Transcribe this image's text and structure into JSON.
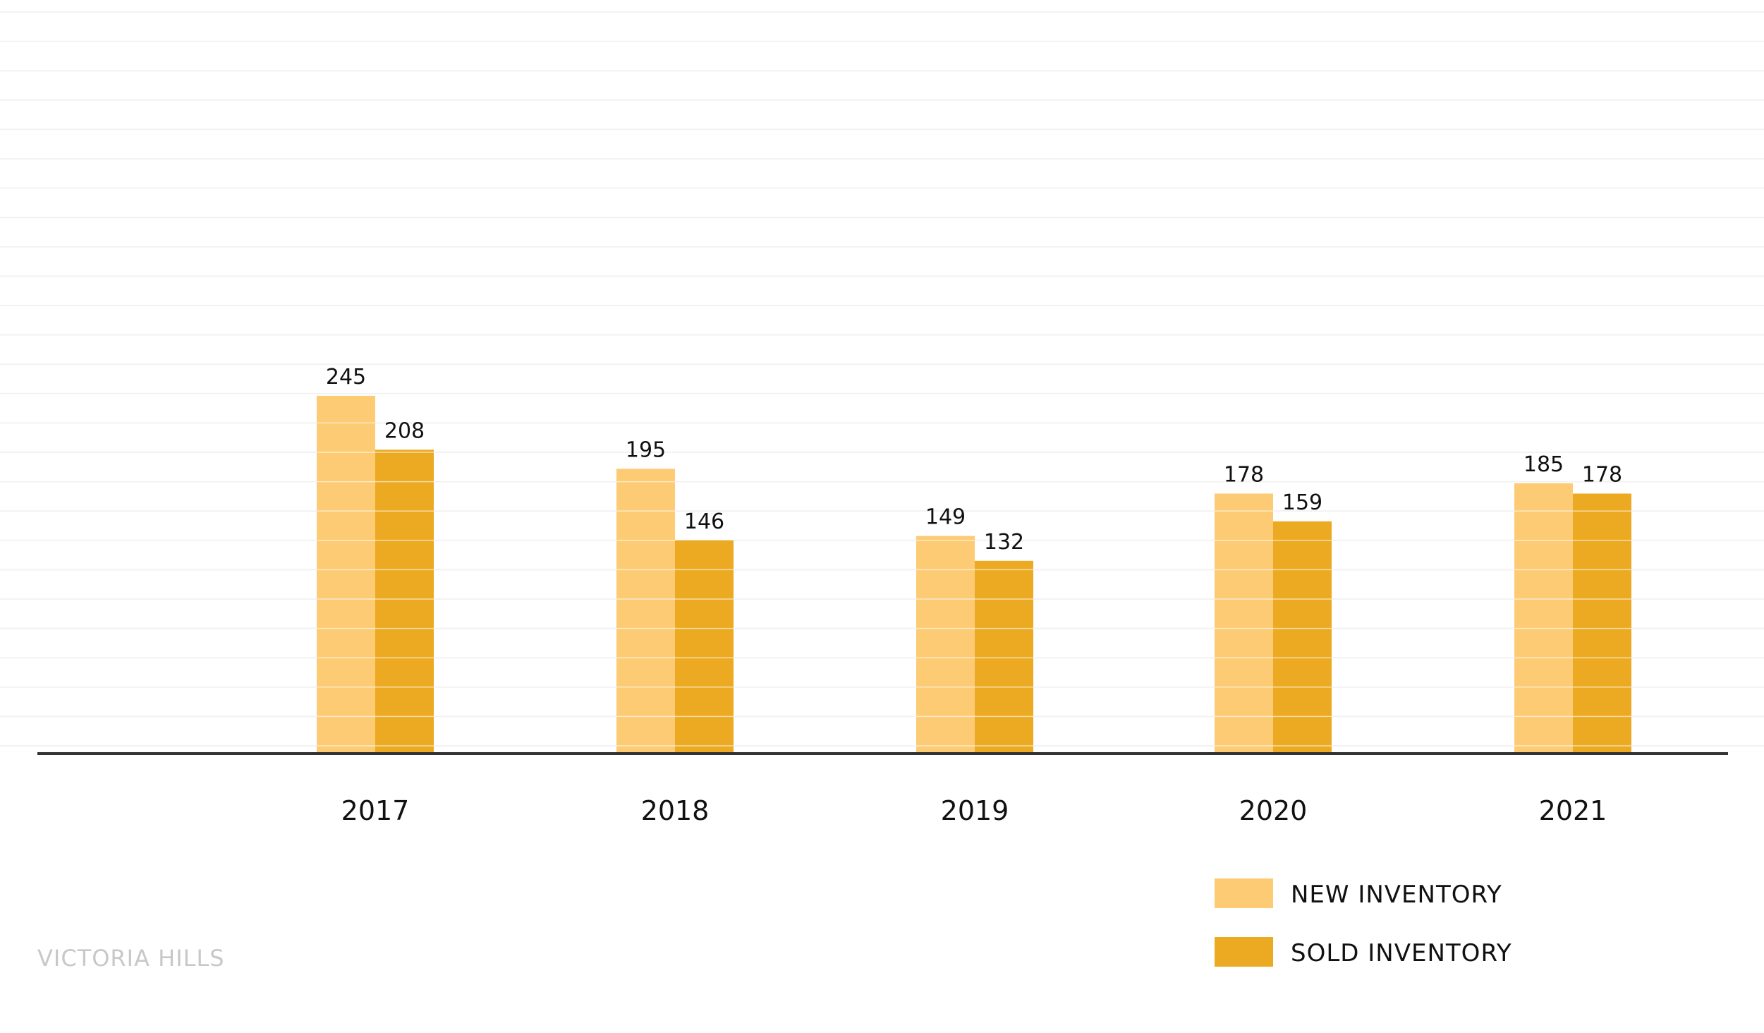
{
  "chart_data": {
    "type": "bar",
    "title": "",
    "xlabel": "",
    "ylabel": "",
    "categories": [
      "2017",
      "2018",
      "2019",
      "2020",
      "2021"
    ],
    "series": [
      {
        "name": "NEW INVENTORY",
        "values": [
          245,
          195,
          149,
          178,
          185
        ],
        "color": "#FCCB74"
      },
      {
        "name": "SOLD INVENTORY",
        "values": [
          208,
          146,
          132,
          159,
          178
        ],
        "color": "#EBAA22"
      }
    ],
    "ylim": [
      0,
      500
    ],
    "grid": true,
    "legend_position": "bottom-right",
    "colors": {
      "gridline": "#f2f2f2",
      "axis": "#333333",
      "bar_gridline": "#ffffff"
    }
  },
  "watermark": "VICTORIA HILLS"
}
